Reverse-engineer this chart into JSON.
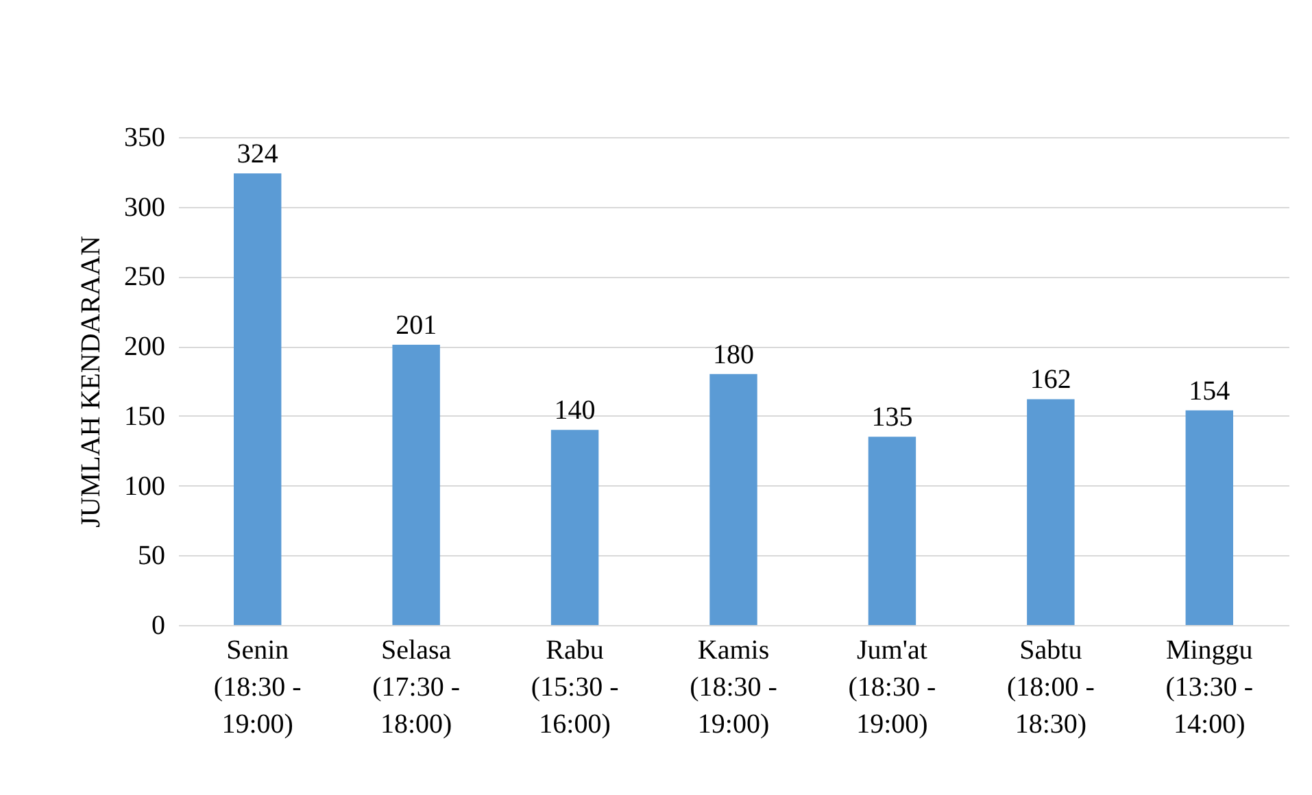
{
  "chart_data": {
    "type": "bar",
    "ylabel": "JUMLAH KENDARAAN",
    "categories": [
      "Senin\n(18:30 -\n19:00)",
      "Selasa\n(17:30 -\n18:00)",
      "Rabu\n(15:30 -\n16:00)",
      "Kamis\n(18:30 -\n19:00)",
      "Jum'at\n(18:30 -\n19:00)",
      "Sabtu\n(18:00 -\n18:30)",
      "Minggu\n(13:30 -\n14:00)"
    ],
    "values": [
      324,
      201,
      140,
      180,
      135,
      162,
      154
    ],
    "color": "#5b9bd5",
    "ylim": [
      0,
      350
    ],
    "yticks": [
      0,
      50,
      100,
      150,
      200,
      250,
      300,
      350
    ],
    "grid": "y",
    "data_labels": true
  }
}
